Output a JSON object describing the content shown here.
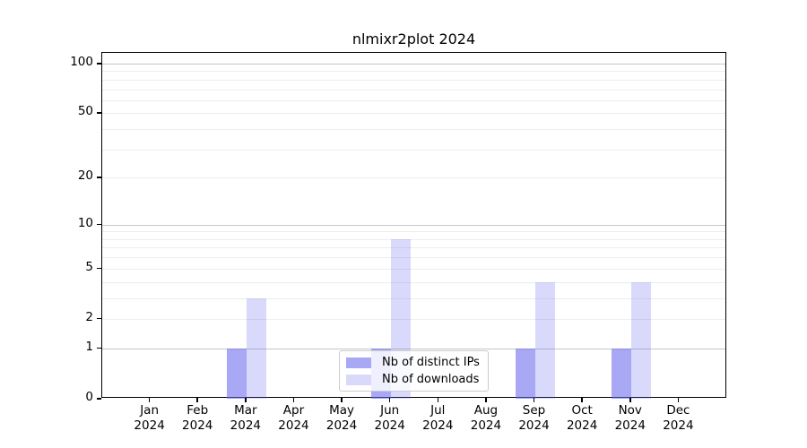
{
  "chart_data": {
    "type": "bar",
    "title": "nlmixr2plot 2024",
    "categories": [
      "Jan",
      "Feb",
      "Mar",
      "Apr",
      "May",
      "Jun",
      "Jul",
      "Aug",
      "Sep",
      "Oct",
      "Nov",
      "Dec"
    ],
    "category_year": "2024",
    "series": [
      {
        "name": "Nb of distinct IPs",
        "color": "rgba(102,102,238,0.57)",
        "values": [
          0,
          0,
          1,
          0,
          0,
          1,
          0,
          0,
          1,
          0,
          1,
          0
        ]
      },
      {
        "name": "Nb of downloads",
        "color": "rgba(102,102,238,0.25)",
        "values": [
          0,
          0,
          3,
          0,
          0,
          8,
          0,
          0,
          4,
          0,
          4,
          0
        ]
      }
    ],
    "y_axis": {
      "scale": "log1p",
      "tick_labels": [
        "0",
        "1",
        "2",
        "5",
        "10",
        "20",
        "50",
        "100"
      ],
      "tick_values": [
        0,
        1,
        2,
        5,
        10,
        20,
        50,
        100
      ],
      "major_gridlines": [
        1,
        10,
        100
      ],
      "minor_gridlines": [
        2,
        3,
        4,
        5,
        6,
        7,
        8,
        9,
        20,
        30,
        40,
        50,
        60,
        70,
        80,
        90
      ],
      "ylim": [
        0,
        116
      ]
    },
    "xlabel": "",
    "ylabel": "",
    "grid": true,
    "legend_position": "inside-bottom-center"
  },
  "colors": {
    "background": "#ffffff",
    "axis": "#000000",
    "text": "#000000",
    "major_grid": "#c6c6c6",
    "minor_grid": "#ededed",
    "legend_border": "#cccccc"
  }
}
